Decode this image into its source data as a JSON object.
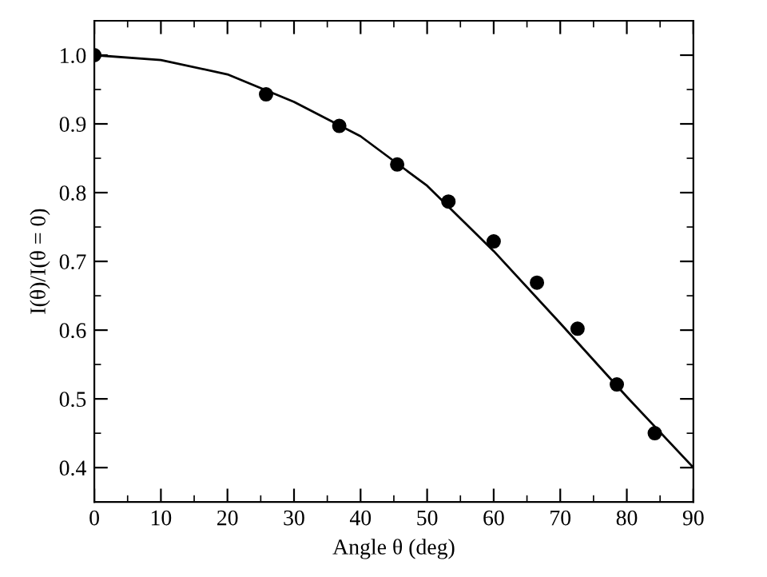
{
  "chart_data": {
    "type": "scatter",
    "xlabel": "Angle θ (deg)",
    "ylabel": "I(θ)/I(θ = 0)",
    "xlim": [
      0,
      90
    ],
    "ylim": [
      0.35,
      1.05
    ],
    "xticks": [
      0,
      10,
      20,
      30,
      40,
      50,
      60,
      70,
      80,
      90
    ],
    "yticks": [
      0.4,
      0.5,
      0.6,
      0.7,
      0.8,
      0.9,
      {
        "value": 1,
        "label": "1.0"
      }
    ],
    "grid": false,
    "legend": false,
    "series": [
      {
        "color": "#000000",
        "marker": "circle",
        "x": [
          0,
          25.8,
          36.8,
          45.5,
          53.2,
          60.0,
          66.5,
          72.6,
          78.5,
          84.2
        ],
        "values": [
          1.0,
          0.943,
          0.897,
          0.841,
          0.787,
          0.729,
          0.669,
          0.602,
          0.521,
          0.45
        ]
      },
      {
        "type": "line",
        "color": "#000000",
        "marker": "none",
        "line_style": "solid",
        "x": [
          0,
          10,
          20,
          30,
          40,
          50,
          60,
          70,
          80,
          90
        ],
        "values": [
          1.0,
          0.993,
          0.972,
          0.932,
          0.882,
          0.81,
          0.715,
          0.61,
          0.503,
          0.4
        ]
      }
    ]
  }
}
